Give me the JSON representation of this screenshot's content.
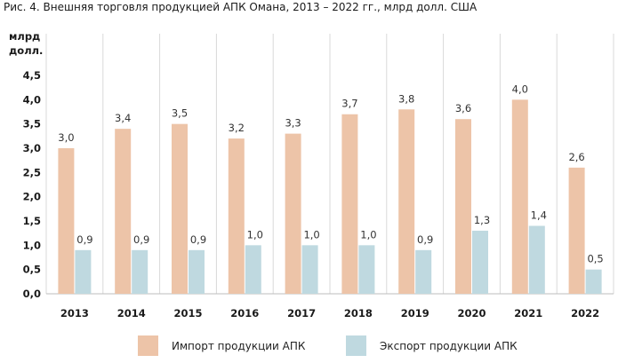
{
  "chart_data": {
    "type": "bar",
    "title": "Рис. 4.  Внешняя торговля продукцией АПК Омана, 2013 – 2022 гг., млрд долл. США",
    "ylabel_line1": "млрд",
    "ylabel_line2": "долл.",
    "categories": [
      "2013",
      "2014",
      "2015",
      "2016",
      "2017",
      "2018",
      "2019",
      "2020",
      "2021",
      "2022"
    ],
    "series": [
      {
        "name": "Импорт продукции АПК",
        "color": "#edc4a8",
        "values": [
          3.0,
          3.4,
          3.5,
          3.2,
          3.3,
          3.7,
          3.8,
          3.6,
          4.0,
          2.6
        ],
        "labels": [
          "3,0",
          "3,4",
          "3,5",
          "3,2",
          "3,3",
          "3,7",
          "3,8",
          "3,6",
          "4,0",
          "2,6"
        ]
      },
      {
        "name": "Экспорт продукции АПК",
        "color": "#bfd9e0",
        "values": [
          0.9,
          0.9,
          0.9,
          1.0,
          1.0,
          1.0,
          0.9,
          1.3,
          1.4,
          0.5
        ],
        "labels": [
          "0,9",
          "0,9",
          "0,9",
          "1,0",
          "1,0",
          "1,0",
          "0,9",
          "1,3",
          "1,4",
          "0,5"
        ]
      }
    ],
    "ylim": [
      0,
      4.5
    ],
    "yticks": [
      0,
      0.5,
      1.0,
      1.5,
      2.0,
      2.5,
      3.0,
      3.5,
      4.0,
      4.5
    ],
    "ytick_labels": [
      "0,0",
      "0,5",
      "1,0",
      "1,5",
      "2,0",
      "2,5",
      "3,0",
      "3,5",
      "4,0",
      "4,5"
    ],
    "grid": "vertical",
    "legend_position": "bottom"
  }
}
